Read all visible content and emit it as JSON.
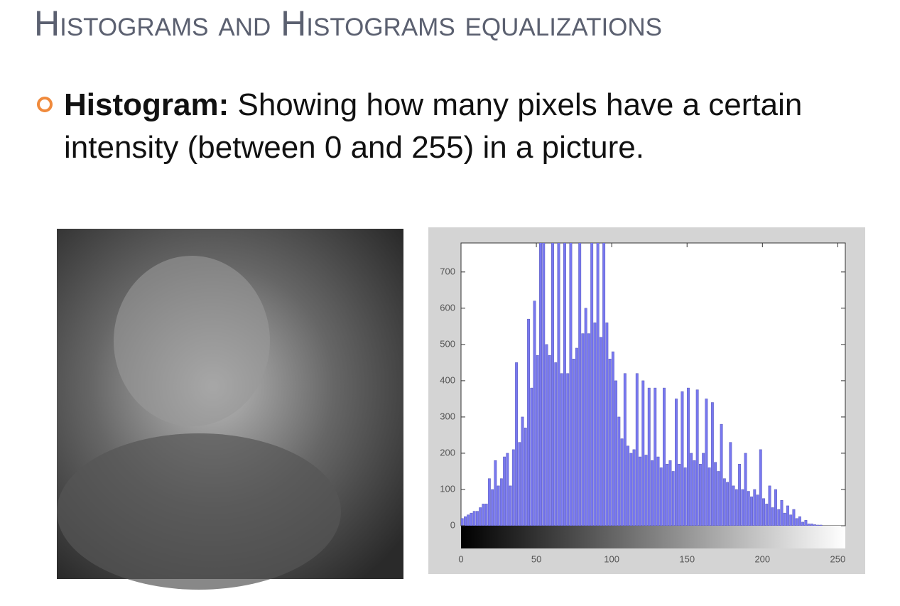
{
  "header": {
    "title": "Histograms and Histograms equalizations"
  },
  "bullet": {
    "label": "Histogram:",
    "text": "Showing how many pixels have a certain intensity (between 0 and 255) in a picture."
  },
  "chart_data": {
    "type": "bar",
    "color": "#7878f0",
    "x": [
      0,
      2,
      4,
      6,
      8,
      10,
      12,
      14,
      16,
      18,
      20,
      22,
      24,
      26,
      28,
      30,
      32,
      34,
      36,
      38,
      40,
      42,
      44,
      46,
      48,
      50,
      52,
      54,
      56,
      58,
      60,
      62,
      64,
      66,
      68,
      70,
      72,
      74,
      76,
      78,
      80,
      82,
      84,
      86,
      88,
      90,
      92,
      94,
      96,
      98,
      100,
      102,
      104,
      106,
      108,
      110,
      112,
      114,
      116,
      118,
      120,
      122,
      124,
      126,
      128,
      130,
      132,
      134,
      136,
      138,
      140,
      142,
      144,
      146,
      148,
      150,
      152,
      154,
      156,
      158,
      160,
      162,
      164,
      166,
      168,
      170,
      172,
      174,
      176,
      178,
      180,
      182,
      184,
      186,
      188,
      190,
      192,
      194,
      196,
      198,
      200,
      202,
      204,
      206,
      208,
      210,
      212,
      214,
      216,
      218,
      220,
      222,
      224,
      226,
      228,
      230,
      232,
      234,
      236,
      238,
      240,
      242,
      244,
      246,
      248,
      250,
      252,
      254
    ],
    "values": [
      20,
      25,
      30,
      35,
      40,
      40,
      50,
      60,
      60,
      130,
      100,
      180,
      110,
      130,
      190,
      200,
      110,
      210,
      450,
      230,
      300,
      270,
      570,
      380,
      620,
      470,
      800,
      800,
      500,
      470,
      800,
      450,
      800,
      420,
      800,
      420,
      800,
      460,
      490,
      800,
      530,
      600,
      530,
      800,
      560,
      800,
      520,
      800,
      560,
      460,
      480,
      400,
      300,
      240,
      420,
      220,
      200,
      210,
      420,
      190,
      400,
      195,
      380,
      180,
      380,
      190,
      160,
      380,
      170,
      180,
      150,
      350,
      170,
      370,
      160,
      380,
      200,
      180,
      375,
      170,
      200,
      350,
      160,
      340,
      175,
      150,
      280,
      130,
      120,
      230,
      110,
      100,
      170,
      100,
      200,
      95,
      80,
      100,
      85,
      210,
      75,
      60,
      110,
      50,
      100,
      45,
      70,
      35,
      55,
      30,
      45,
      20,
      25,
      10,
      15,
      5,
      5,
      3,
      2,
      2,
      0,
      0,
      0,
      0,
      0,
      0,
      0,
      0
    ],
    "xlim": [
      0,
      255
    ],
    "ylim": [
      0,
      780
    ],
    "xticks": [
      0,
      50,
      100,
      150,
      200,
      250
    ],
    "yticks": [
      0,
      100,
      200,
      300,
      400,
      500,
      600,
      700
    ]
  }
}
